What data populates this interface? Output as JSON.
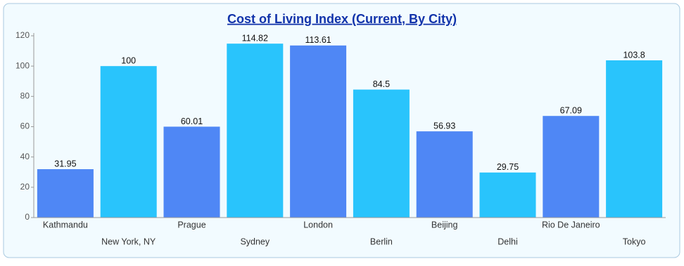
{
  "chart_data": {
    "type": "bar",
    "title": "Cost of Living Index (Current, By City)",
    "categories": [
      "Kathmandu",
      "New York, NY",
      "Prague",
      "Sydney",
      "London",
      "Berlin",
      "Beijing",
      "Delhi",
      "Rio De Janeiro",
      "Tokyo"
    ],
    "values": [
      31.95,
      100,
      60.01,
      114.82,
      113.61,
      84.5,
      56.93,
      29.75,
      67.09,
      103.8
    ],
    "colors": [
      "#4f87f5",
      "#29c4fc"
    ],
    "ylim": [
      0,
      120
    ],
    "yticks": [
      0,
      20,
      40,
      60,
      80,
      100,
      120
    ],
    "grid": false
  }
}
